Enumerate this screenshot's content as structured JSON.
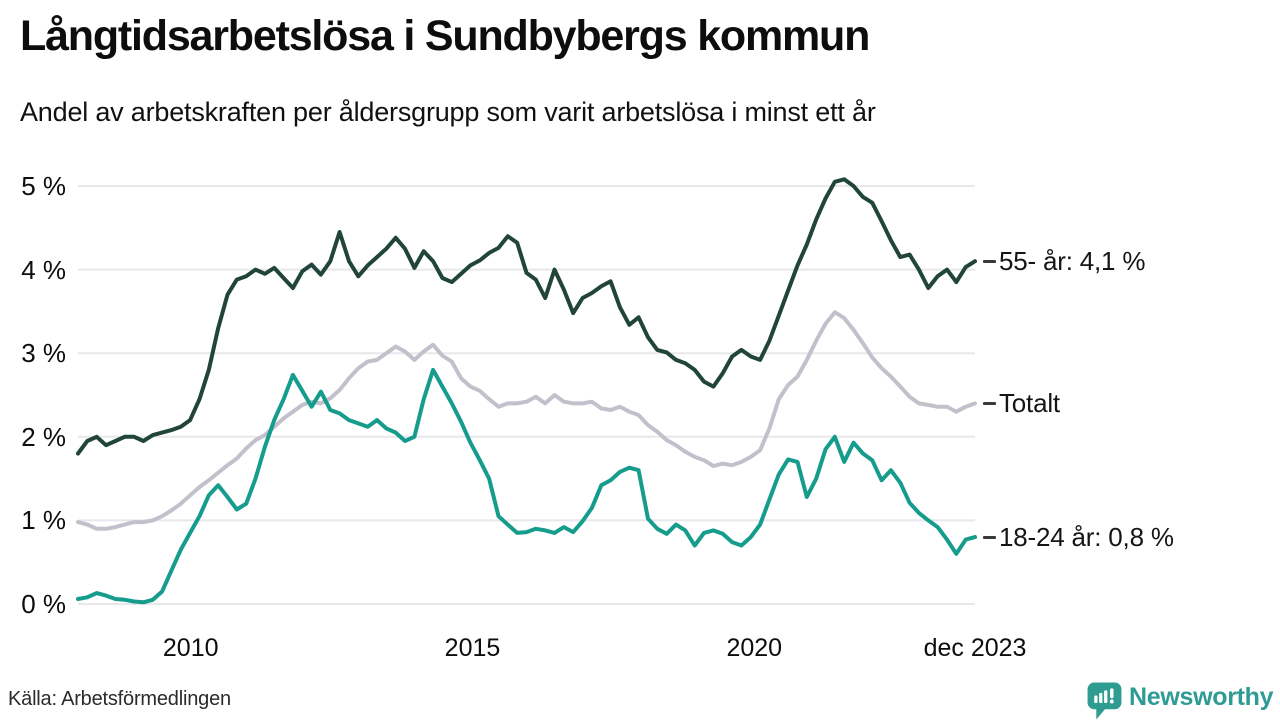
{
  "header": {
    "title": "Långtidsarbetslösa i Sundbybergs kommun",
    "subtitle": "Andel av arbetskraften per åldersgrupp som varit arbetslösa i minst ett år"
  },
  "footer": {
    "source": "Källa: Arbetsförmedlingen",
    "brand": "Newsworthy"
  },
  "colors": {
    "series_55": "#21453b",
    "series_total": "#c3c0cc",
    "series_1824": "#159c8d",
    "gridline": "#e8e7ec",
    "text": "#0d0d0d",
    "brand_teal": "#2f9c92"
  },
  "chart_data": {
    "type": "line",
    "title": "Långtidsarbetslösa i Sundbybergs kommun",
    "subtitle": "Andel av arbetskraften per åldersgrupp som varit arbetslösa i minst ett år",
    "grid": "horizontal-only",
    "legend_position": "right-end-labels",
    "ylim": [
      0,
      5
    ],
    "yticks": [
      {
        "value": 0,
        "label": "0 %"
      },
      {
        "value": 1,
        "label": "1 %"
      },
      {
        "value": 2,
        "label": "2 %"
      },
      {
        "value": 3,
        "label": "3 %"
      },
      {
        "value": 4,
        "label": "4 %"
      },
      {
        "value": 5,
        "label": "5 %"
      }
    ],
    "x_months_since_jan_2008": {
      "first": 0,
      "last": 191,
      "points_every_n_months": 2
    },
    "xticks": [
      {
        "label": "2010",
        "month": 24
      },
      {
        "label": "2015",
        "month": 84
      },
      {
        "label": "2020",
        "month": 144
      },
      {
        "label": "dec 2023",
        "month": 191
      }
    ],
    "series": [
      {
        "name": "55- år",
        "end_label": "55- år: 4,1 %",
        "end_value_pct": 4.1,
        "color": "#21453b",
        "values": [
          1.8,
          1.95,
          2.0,
          1.9,
          1.95,
          2.0,
          2.0,
          1.95,
          2.02,
          2.05,
          2.08,
          2.12,
          2.2,
          2.45,
          2.8,
          3.3,
          3.7,
          3.88,
          3.92,
          4.0,
          3.95,
          4.02,
          3.9,
          3.78,
          3.98,
          4.06,
          3.94,
          4.1,
          4.45,
          4.1,
          3.92,
          4.05,
          4.15,
          4.25,
          4.38,
          4.25,
          4.02,
          4.22,
          4.1,
          3.9,
          3.85,
          3.95,
          4.05,
          4.11,
          4.2,
          4.26,
          4.4,
          4.32,
          3.96,
          3.88,
          3.66,
          4.0,
          3.76,
          3.48,
          3.66,
          3.72,
          3.8,
          3.86,
          3.55,
          3.34,
          3.43,
          3.19,
          3.04,
          3.01,
          2.92,
          2.88,
          2.8,
          2.66,
          2.6,
          2.76,
          2.96,
          3.04,
          2.96,
          2.92,
          3.15,
          3.45,
          3.75,
          4.05,
          4.3,
          4.6,
          4.85,
          5.05,
          5.08,
          5.0,
          4.87,
          4.8,
          4.58,
          4.35,
          4.15,
          4.18,
          4.0,
          3.78,
          3.92,
          4.0,
          3.85,
          4.03,
          4.1
        ]
      },
      {
        "name": "Totalt",
        "end_label": "Totalt",
        "end_value_pct": 2.4,
        "color": "#c3c0cc",
        "values": [
          0.98,
          0.95,
          0.9,
          0.9,
          0.92,
          0.95,
          0.98,
          0.98,
          1.0,
          1.05,
          1.12,
          1.2,
          1.3,
          1.4,
          1.48,
          1.57,
          1.66,
          1.74,
          1.86,
          1.96,
          2.02,
          2.12,
          2.22,
          2.3,
          2.38,
          2.42,
          2.4,
          2.46,
          2.56,
          2.7,
          2.82,
          2.9,
          2.92,
          3.0,
          3.08,
          3.02,
          2.92,
          3.02,
          3.1,
          2.97,
          2.9,
          2.7,
          2.6,
          2.55,
          2.45,
          2.36,
          2.4,
          2.4,
          2.42,
          2.48,
          2.4,
          2.5,
          2.42,
          2.4,
          2.4,
          2.42,
          2.34,
          2.32,
          2.36,
          2.3,
          2.26,
          2.14,
          2.06,
          1.96,
          1.9,
          1.82,
          1.76,
          1.72,
          1.65,
          1.68,
          1.66,
          1.7,
          1.76,
          1.84,
          2.1,
          2.45,
          2.62,
          2.72,
          2.92,
          3.15,
          3.35,
          3.49,
          3.42,
          3.28,
          3.12,
          2.95,
          2.82,
          2.72,
          2.6,
          2.48,
          2.4,
          2.38,
          2.36,
          2.36,
          2.3,
          2.36,
          2.4
        ]
      },
      {
        "name": "18-24 år",
        "end_label": "18-24 år: 0,8 %",
        "end_value_pct": 0.8,
        "color": "#159c8d",
        "values": [
          0.06,
          0.08,
          0.13,
          0.1,
          0.06,
          0.05,
          0.03,
          0.02,
          0.05,
          0.15,
          0.4,
          0.65,
          0.85,
          1.05,
          1.3,
          1.42,
          1.28,
          1.13,
          1.2,
          1.5,
          1.88,
          2.2,
          2.45,
          2.74,
          2.55,
          2.36,
          2.54,
          2.32,
          2.28,
          2.2,
          2.16,
          2.12,
          2.2,
          2.1,
          2.05,
          1.95,
          2.0,
          2.45,
          2.8,
          2.6,
          2.4,
          2.18,
          1.93,
          1.72,
          1.5,
          1.05,
          0.95,
          0.85,
          0.86,
          0.9,
          0.88,
          0.85,
          0.92,
          0.86,
          0.99,
          1.15,
          1.42,
          1.48,
          1.58,
          1.63,
          1.6,
          1.02,
          0.9,
          0.84,
          0.95,
          0.88,
          0.7,
          0.85,
          0.88,
          0.84,
          0.74,
          0.7,
          0.8,
          0.95,
          1.25,
          1.55,
          1.73,
          1.7,
          1.28,
          1.5,
          1.85,
          2.0,
          1.7,
          1.93,
          1.8,
          1.72,
          1.48,
          1.6,
          1.45,
          1.21,
          1.09,
          1.0,
          0.92,
          0.77,
          0.6,
          0.77,
          0.8
        ]
      }
    ]
  }
}
